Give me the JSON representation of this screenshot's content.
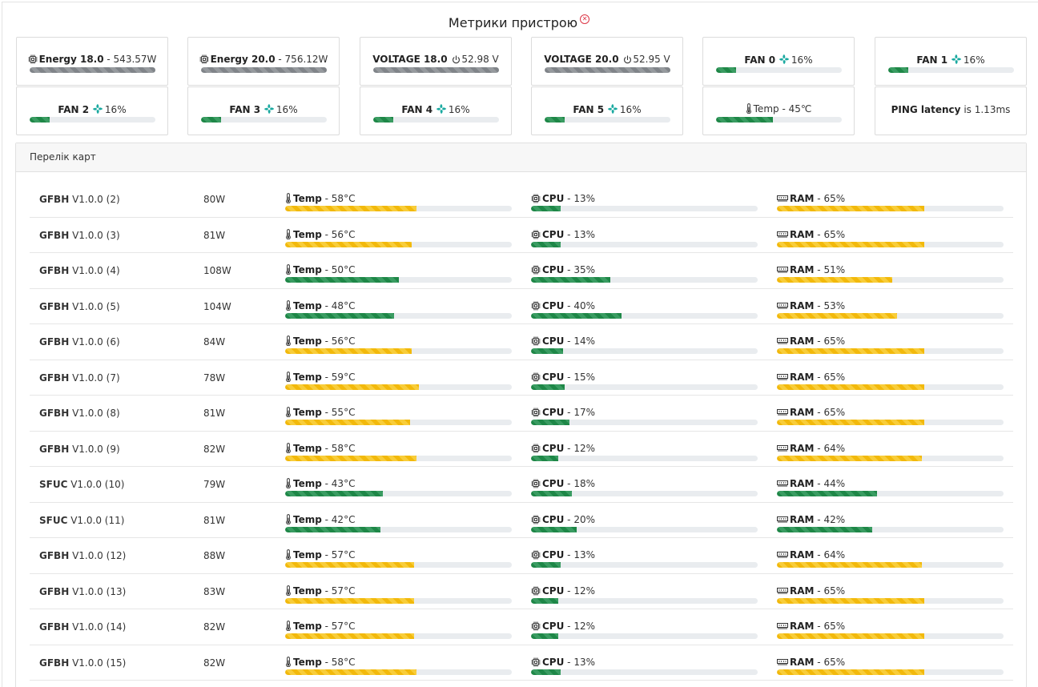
{
  "page": {
    "title": "Метрики пристрою",
    "title_icon": "close-circle-icon"
  },
  "metric_cards": [
    {
      "icon": "chip-icon",
      "label": "Energy 18.0",
      "value": "543.57W",
      "percent": 100,
      "color": "gray"
    },
    {
      "icon": "chip-icon",
      "label": "Energy 20.0",
      "value": "756.12W",
      "percent": 100,
      "color": "gray"
    },
    {
      "icon": "power-icon",
      "label": "VOLTAGE 18.0",
      "value": "52.98 V",
      "percent": 100,
      "color": "gray"
    },
    {
      "icon": "power-icon",
      "label": "VOLTAGE 20.0",
      "value": "52.95 V",
      "percent": 100,
      "color": "gray"
    },
    {
      "icon": "fan-icon",
      "label": "FAN 0",
      "value": "16%",
      "percent": 16,
      "color": "green"
    },
    {
      "icon": "fan-icon",
      "label": "FAN 1",
      "value": "16%",
      "percent": 16,
      "color": "green"
    },
    {
      "icon": "fan-icon",
      "label": "FAN 2",
      "value": "16%",
      "percent": 16,
      "color": "green"
    },
    {
      "icon": "fan-icon",
      "label": "FAN 3",
      "value": "16%",
      "percent": 16,
      "color": "green"
    },
    {
      "icon": "fan-icon",
      "label": "FAN 4",
      "value": "16%",
      "percent": 16,
      "color": "green"
    },
    {
      "icon": "fan-icon",
      "label": "FAN 5",
      "value": "16%",
      "percent": 16,
      "color": "green"
    },
    {
      "icon": "thermometer-icon",
      "label": "Temp",
      "value": "45℃",
      "percent": 45,
      "color": "green"
    },
    {
      "icon": "",
      "label": "PING latency",
      "value": "is 1.13ms",
      "percent": null,
      "color": ""
    }
  ],
  "boards_panel": {
    "title": "Перелік карт",
    "labels": {
      "temp": "Temp",
      "cpu": "CPU",
      "ram": "RAM"
    },
    "rows": [
      {
        "type": "GFBH",
        "version": "V1.0.0 (2)",
        "power": "80W",
        "temp": "58°C",
        "temp_pct": 58,
        "cpu": "13%",
        "cpu_pct": 13,
        "ram": "65%",
        "ram_pct": 65
      },
      {
        "type": "GFBH",
        "version": "V1.0.0 (3)",
        "power": "81W",
        "temp": "56°C",
        "temp_pct": 56,
        "cpu": "13%",
        "cpu_pct": 13,
        "ram": "65%",
        "ram_pct": 65
      },
      {
        "type": "GFBH",
        "version": "V1.0.0 (4)",
        "power": "108W",
        "temp": "50°C",
        "temp_pct": 50,
        "cpu": "35%",
        "cpu_pct": 35,
        "ram": "51%",
        "ram_pct": 51
      },
      {
        "type": "GFBH",
        "version": "V1.0.0 (5)",
        "power": "104W",
        "temp": "48°C",
        "temp_pct": 48,
        "cpu": "40%",
        "cpu_pct": 40,
        "ram": "53%",
        "ram_pct": 53
      },
      {
        "type": "GFBH",
        "version": "V1.0.0 (6)",
        "power": "84W",
        "temp": "56°C",
        "temp_pct": 56,
        "cpu": "14%",
        "cpu_pct": 14,
        "ram": "65%",
        "ram_pct": 65
      },
      {
        "type": "GFBH",
        "version": "V1.0.0 (7)",
        "power": "78W",
        "temp": "59°C",
        "temp_pct": 59,
        "cpu": "15%",
        "cpu_pct": 15,
        "ram": "65%",
        "ram_pct": 65
      },
      {
        "type": "GFBH",
        "version": "V1.0.0 (8)",
        "power": "81W",
        "temp": "55°C",
        "temp_pct": 55,
        "cpu": "17%",
        "cpu_pct": 17,
        "ram": "65%",
        "ram_pct": 65
      },
      {
        "type": "GFBH",
        "version": "V1.0.0 (9)",
        "power": "82W",
        "temp": "58°C",
        "temp_pct": 58,
        "cpu": "12%",
        "cpu_pct": 12,
        "ram": "64%",
        "ram_pct": 64
      },
      {
        "type": "SFUC",
        "version": "V1.0.0 (10)",
        "power": "79W",
        "temp": "43°C",
        "temp_pct": 43,
        "cpu": "18%",
        "cpu_pct": 18,
        "ram": "44%",
        "ram_pct": 44
      },
      {
        "type": "SFUC",
        "version": "V1.0.0 (11)",
        "power": "81W",
        "temp": "42°C",
        "temp_pct": 42,
        "cpu": "20%",
        "cpu_pct": 20,
        "ram": "42%",
        "ram_pct": 42
      },
      {
        "type": "GFBH",
        "version": "V1.0.0 (12)",
        "power": "88W",
        "temp": "57°C",
        "temp_pct": 57,
        "cpu": "13%",
        "cpu_pct": 13,
        "ram": "64%",
        "ram_pct": 64
      },
      {
        "type": "GFBH",
        "version": "V1.0.0 (13)",
        "power": "83W",
        "temp": "57°C",
        "temp_pct": 57,
        "cpu": "12%",
        "cpu_pct": 12,
        "ram": "65%",
        "ram_pct": 65
      },
      {
        "type": "GFBH",
        "version": "V1.0.0 (14)",
        "power": "82W",
        "temp": "57°C",
        "temp_pct": 57,
        "cpu": "12%",
        "cpu_pct": 12,
        "ram": "65%",
        "ram_pct": 65
      },
      {
        "type": "GFBH",
        "version": "V1.0.0 (15)",
        "power": "82W",
        "temp": "58°C",
        "temp_pct": 58,
        "cpu": "13%",
        "cpu_pct": 13,
        "ram": "65%",
        "ram_pct": 65
      }
    ]
  },
  "colors": {
    "green": "#1e8747",
    "yellow": "#f2b90c",
    "gray": "#808489",
    "fan_icon": "#1aa9a0",
    "close_icon": "#dc3545",
    "track": "#e9ecef"
  }
}
